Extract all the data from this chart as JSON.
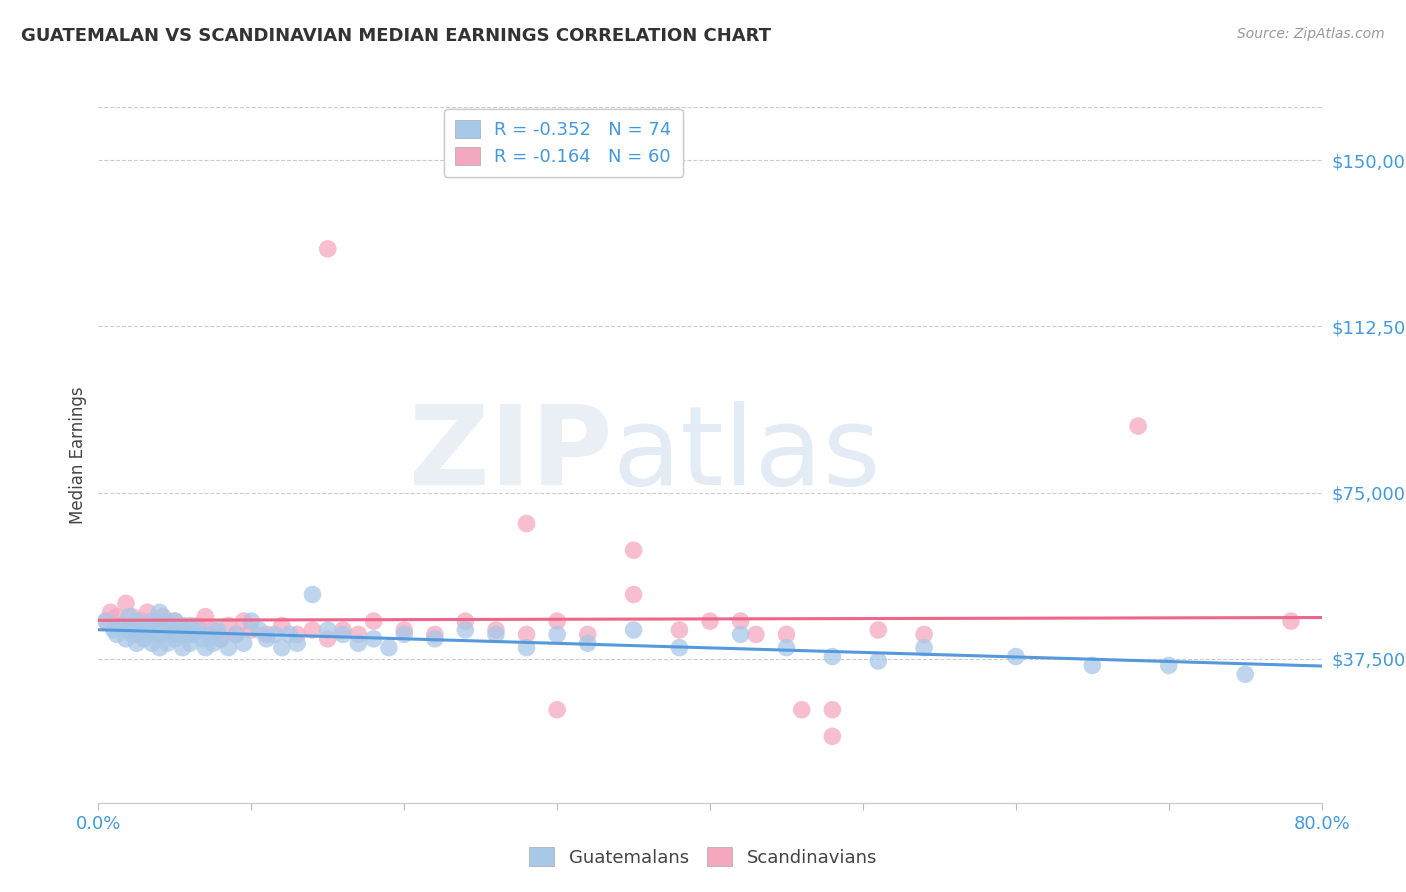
{
  "title": "GUATEMALAN VS SCANDINAVIAN MEDIAN EARNINGS CORRELATION CHART",
  "source": "Source: ZipAtlas.com",
  "ylabel": "Median Earnings",
  "ytick_labels": [
    "$37,500",
    "$75,000",
    "$112,500",
    "$150,000"
  ],
  "ytick_values": [
    37500,
    75000,
    112500,
    150000
  ],
  "ymin": 5000,
  "ymax": 162000,
  "xmin": 0.0,
  "xmax": 0.8,
  "color_blue": "#a8c8e8",
  "color_pink": "#f4a8c0",
  "color_blue_line": "#5599dd",
  "color_pink_line": "#ee6688",
  "R_guatemalan": -0.352,
  "N_guatemalan": 74,
  "R_scandinavian": -0.164,
  "N_scandinavian": 60,
  "legend_xlabel1": "Guatemalans",
  "legend_xlabel2": "Scandinavians",
  "blue_scatter_x": [
    0.005,
    0.01,
    0.012,
    0.015,
    0.018,
    0.02,
    0.02,
    0.022,
    0.025,
    0.025,
    0.028,
    0.03,
    0.03,
    0.032,
    0.035,
    0.035,
    0.038,
    0.04,
    0.04,
    0.04,
    0.042,
    0.045,
    0.045,
    0.048,
    0.05,
    0.05,
    0.052,
    0.055,
    0.055,
    0.058,
    0.06,
    0.06,
    0.062,
    0.065,
    0.068,
    0.07,
    0.072,
    0.075,
    0.078,
    0.08,
    0.085,
    0.09,
    0.095,
    0.1,
    0.105,
    0.11,
    0.115,
    0.12,
    0.125,
    0.13,
    0.14,
    0.15,
    0.16,
    0.17,
    0.18,
    0.19,
    0.2,
    0.22,
    0.24,
    0.26,
    0.28,
    0.3,
    0.32,
    0.35,
    0.38,
    0.42,
    0.45,
    0.48,
    0.51,
    0.54,
    0.6,
    0.65,
    0.7,
    0.75
  ],
  "blue_scatter_y": [
    46000,
    44000,
    43000,
    45000,
    42000,
    44000,
    47000,
    43000,
    46000,
    41000,
    43000,
    45000,
    42000,
    44000,
    46000,
    41000,
    43000,
    45000,
    40000,
    48000,
    43000,
    46000,
    41000,
    44000,
    42000,
    46000,
    43000,
    45000,
    40000,
    43000,
    41000,
    45000,
    43000,
    44000,
    42000,
    40000,
    43000,
    41000,
    44000,
    42000,
    40000,
    43000,
    41000,
    46000,
    44000,
    42000,
    43000,
    40000,
    43000,
    41000,
    52000,
    44000,
    43000,
    41000,
    42000,
    40000,
    43000,
    42000,
    44000,
    43000,
    40000,
    43000,
    41000,
    44000,
    40000,
    43000,
    40000,
    38000,
    37000,
    40000,
    38000,
    36000,
    36000,
    34000
  ],
  "pink_scatter_x": [
    0.005,
    0.008,
    0.012,
    0.015,
    0.018,
    0.02,
    0.022,
    0.025,
    0.028,
    0.03,
    0.032,
    0.035,
    0.038,
    0.04,
    0.042,
    0.045,
    0.048,
    0.05,
    0.055,
    0.06,
    0.065,
    0.07,
    0.075,
    0.08,
    0.085,
    0.09,
    0.095,
    0.1,
    0.11,
    0.12,
    0.13,
    0.14,
    0.15,
    0.16,
    0.17,
    0.18,
    0.2,
    0.22,
    0.24,
    0.26,
    0.28,
    0.3,
    0.32,
    0.35,
    0.38,
    0.42,
    0.45,
    0.48,
    0.51,
    0.54,
    0.15,
    0.28,
    0.35,
    0.4,
    0.43,
    0.46,
    0.68,
    0.78,
    0.48,
    0.3
  ],
  "pink_scatter_y": [
    46000,
    48000,
    47000,
    45000,
    50000,
    44000,
    47000,
    43000,
    46000,
    45000,
    48000,
    44000,
    46000,
    43000,
    47000,
    45000,
    43000,
    46000,
    44000,
    43000,
    45000,
    47000,
    44000,
    42000,
    45000,
    43000,
    46000,
    44000,
    43000,
    45000,
    43000,
    44000,
    42000,
    44000,
    43000,
    46000,
    44000,
    43000,
    46000,
    44000,
    43000,
    46000,
    43000,
    52000,
    44000,
    46000,
    43000,
    26000,
    44000,
    43000,
    130000,
    68000,
    62000,
    46000,
    43000,
    26000,
    90000,
    46000,
    20000,
    26000
  ]
}
